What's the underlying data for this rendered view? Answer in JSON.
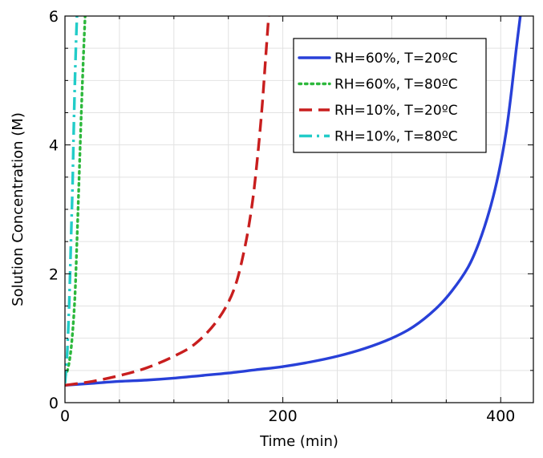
{
  "chart_data": {
    "type": "line",
    "title": "",
    "xlabel": "Time (min)",
    "ylabel": "Solution Concentration (M)",
    "xlim": [
      0,
      430
    ],
    "ylim": [
      0,
      6
    ],
    "xticks": [
      0,
      200,
      400
    ],
    "yticks": [
      0,
      2,
      4,
      6
    ],
    "grid": true,
    "legend_position": "top-right",
    "series": [
      {
        "name": "RH=60%, T=20ºC",
        "color": "#2840d8",
        "style": "solid",
        "x": [
          0,
          25,
          50,
          75,
          100,
          125,
          150,
          175,
          200,
          225,
          250,
          275,
          300,
          320,
          340,
          355,
          370,
          380,
          390,
          398,
          405,
          410,
          414,
          418
        ],
        "y": [
          0.27,
          0.3,
          0.33,
          0.35,
          0.38,
          0.42,
          0.46,
          0.51,
          0.56,
          0.63,
          0.72,
          0.84,
          1.0,
          1.18,
          1.45,
          1.73,
          2.1,
          2.48,
          3.0,
          3.55,
          4.2,
          4.85,
          5.45,
          6.0
        ]
      },
      {
        "name": "RH=60%, T=80ºC",
        "color": "#2db83c",
        "style": "dotted",
        "x": [
          0,
          3,
          6,
          9,
          11,
          13,
          15,
          17,
          18.5
        ],
        "y": [
          0.4,
          0.55,
          0.9,
          1.6,
          2.5,
          3.5,
          4.5,
          5.4,
          6.0
        ]
      },
      {
        "name": "RH=10%, T=20ºC",
        "color": "#c81e1e",
        "style": "dashed",
        "x": [
          0,
          25,
          50,
          75,
          100,
          120,
          140,
          155,
          165,
          172,
          177,
          181,
          184,
          187
        ],
        "y": [
          0.27,
          0.33,
          0.42,
          0.54,
          0.72,
          0.92,
          1.28,
          1.75,
          2.4,
          3.1,
          3.85,
          4.6,
          5.3,
          6.0
        ]
      },
      {
        "name": "RH=10%, T=80ºC",
        "color": "#22ccc8",
        "style": "dashdot",
        "x": [
          0,
          2,
          4,
          5.5,
          7,
          8,
          9,
          10,
          11
        ],
        "y": [
          0.3,
          0.75,
          1.6,
          2.5,
          3.4,
          4.2,
          4.9,
          5.5,
          6.0
        ]
      }
    ]
  }
}
